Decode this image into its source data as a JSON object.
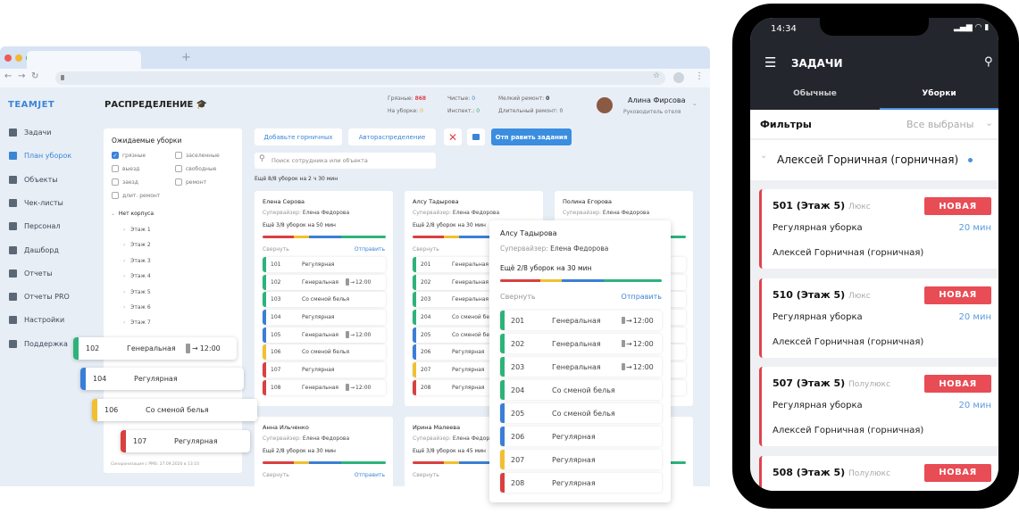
{
  "colors": {
    "green": "#2db37a",
    "blue": "#3a7fd5",
    "yellow": "#f0c030",
    "red": "#d94040",
    "accent": "#3b85d6",
    "badge": "#e84c55"
  },
  "browser": {
    "new_tab": "+"
  },
  "app": {
    "logo": "TEAMJET",
    "title": "РАСПРЕДЕЛЕНИЕ",
    "sidebar": [
      {
        "label": "Задачи",
        "icon": "list-icon"
      },
      {
        "label": "План уборок",
        "icon": "broom-icon",
        "active": true
      },
      {
        "label": "Объекты",
        "icon": "building-icon"
      },
      {
        "label": "Чек-листы",
        "icon": "checklist-icon"
      },
      {
        "label": "Персонал",
        "icon": "people-icon"
      },
      {
        "label": "Дашборд",
        "icon": "dashboard-icon"
      },
      {
        "label": "Отчеты",
        "icon": "report-icon"
      },
      {
        "label": "Отчеты PRO",
        "icon": "table-icon"
      },
      {
        "label": "Настройки",
        "icon": "gear-icon"
      },
      {
        "label": "Поддержка",
        "icon": "chat-icon"
      }
    ],
    "stats": {
      "dirty_label": "Грязные:",
      "dirty": "868",
      "cleaning_label": "На уборке:",
      "cleaning": "0",
      "clean_label": "Чистые:",
      "clean": "0",
      "inspect_label": "Инспект.:",
      "inspect": "0",
      "minor_label": "Мелкий ремонт:",
      "minor": "0",
      "long_label": "Длительный ремонт:",
      "long": "0"
    },
    "user": {
      "name": "Алина Фирсова",
      "role": "Руководитель отеля"
    },
    "filter": {
      "title": "Ожидаемые уборки",
      "checks": [
        {
          "label": "грязные",
          "on": true
        },
        {
          "label": "заселенные"
        },
        {
          "label": "выезд"
        },
        {
          "label": "свободные"
        },
        {
          "label": "заезд"
        },
        {
          "label": "ремонт"
        },
        {
          "label": "длит. ремонт"
        }
      ],
      "group": "Нет корпуса",
      "floors": [
        "Этаж 1",
        "Этаж 2",
        "Этаж 3",
        "Этаж 4",
        "Этаж 5",
        "Этаж 6",
        "Этаж 7"
      ],
      "sync": "Синхронизация с PMS: 27.09.2020 в 13:10"
    },
    "toolbar": {
      "add": "Добавьте горничных",
      "auto": "Автораспределение",
      "send": "Отп равить задания",
      "search_placeholder": "Поиск сотрудника или объекта"
    },
    "summary": "Ещё 8/8 уборок на 2 ч 30 мин",
    "cards": [
      {
        "name": "Елена Серова",
        "sup_label": "Супервайзер:",
        "sup": "Елена Федорова",
        "remaining": "Ещё 3/8 уборок на 50 мин",
        "collapse": "Свернуть",
        "send": "Отправить",
        "rows": [
          {
            "n": "101",
            "t": "Регулярная",
            "c": "green"
          },
          {
            "n": "102",
            "t": "Генеральная",
            "tm": "12:00",
            "c": "green"
          },
          {
            "n": "103",
            "t": "Со сменой белья",
            "c": "green"
          },
          {
            "n": "104",
            "t": "Регулярная",
            "c": "blue"
          },
          {
            "n": "105",
            "t": "Генеральная",
            "tm": "12:00",
            "c": "blue"
          },
          {
            "n": "106",
            "t": "Со сменой белья",
            "c": "yellow"
          },
          {
            "n": "107",
            "t": "Регулярная",
            "c": "red"
          },
          {
            "n": "108",
            "t": "Генеральная",
            "tm": "12:00",
            "c": "red"
          }
        ]
      },
      {
        "name": "Алсу Тадырова",
        "sup_label": "Супервайзер:",
        "sup": "Елена Федорова",
        "remaining": "Ещё 2/8 уборок на 30 мин",
        "collapse": "Свернуть",
        "send": "Отправить",
        "rows": [
          {
            "n": "201",
            "t": "Генеральная",
            "c": "green"
          },
          {
            "n": "202",
            "t": "Генеральная",
            "c": "green"
          },
          {
            "n": "203",
            "t": "Генеральная",
            "c": "green"
          },
          {
            "n": "204",
            "t": "Со сменой белья",
            "c": "green"
          },
          {
            "n": "205",
            "t": "Со сменой белья",
            "c": "blue"
          },
          {
            "n": "206",
            "t": "Регулярная",
            "c": "blue"
          },
          {
            "n": "207",
            "t": "Регулярная",
            "c": "yellow"
          },
          {
            "n": "208",
            "t": "Регулярная",
            "c": "red"
          }
        ]
      },
      {
        "name": "Полина Егорова",
        "sup_label": "Супервайзер:",
        "sup": "Елена Федорова",
        "rows": [
          {},
          {},
          {},
          {},
          {},
          {},
          {},
          {}
        ]
      },
      {
        "name": "Анна Ильченко",
        "sup_label": "Супервайзер:",
        "sup": "Елена Федорова",
        "remaining": "Ещё 2/8 уборок на 30 мин",
        "collapse": "Свернуть",
        "send": "Отправить",
        "rows": []
      },
      {
        "name": "Ирина Малеева",
        "sup_label": "Супервайзер:",
        "sup": "Елена Федорова",
        "remaining": "Ещё 3/8 уборок на 45 мин",
        "collapse": "Свернуть",
        "rows": []
      },
      {
        "rows": []
      }
    ],
    "popup": {
      "name": "Алсу Тадырова",
      "sup_label": "Супервайзер:",
      "sup": "Елена Федорова",
      "remaining": "Ещё 2/8 уборок на 30 мин",
      "collapse": "Свернуть",
      "send": "Отправить",
      "rows": [
        {
          "n": "201",
          "t": "Генеральная",
          "tm": "12:00",
          "c": "green"
        },
        {
          "n": "202",
          "t": "Генеральная",
          "tm": "12:00",
          "c": "green"
        },
        {
          "n": "203",
          "t": "Генеральная",
          "tm": "12:00",
          "c": "green"
        },
        {
          "n": "204",
          "t": "Со сменой белья",
          "c": "green"
        },
        {
          "n": "205",
          "t": "Со сменой белья",
          "c": "blue"
        },
        {
          "n": "206",
          "t": "Регулярная",
          "c": "blue"
        },
        {
          "n": "207",
          "t": "Регулярная",
          "c": "yellow"
        },
        {
          "n": "208",
          "t": "Регулярная",
          "c": "red"
        }
      ]
    },
    "dragged": [
      {
        "n": "102",
        "t": "Генеральная",
        "tm": "12:00",
        "c": "green"
      },
      {
        "n": "104",
        "t": "Регулярная",
        "c": "blue"
      },
      {
        "n": "106",
        "t": "Со сменой белья",
        "c": "yellow"
      },
      {
        "n": "107",
        "t": "Регулярная",
        "c": "red"
      }
    ]
  },
  "mobile": {
    "time": "14:34",
    "title": "ЗАДАЧИ",
    "tabs": [
      {
        "label": "Обычные"
      },
      {
        "label": "Уборки",
        "active": true
      }
    ],
    "filters_label": "Фильтры",
    "filters_value": "Все выбраны",
    "group": "Алексей Горничная (горничная)",
    "tasks": [
      {
        "room": "501 (Этаж 5)",
        "cat": "Люкс",
        "status": "НОВАЯ",
        "type": "Регулярная уборка",
        "dur": "20 мин",
        "assignee": "Алексей Горничная (горничная)"
      },
      {
        "room": "510 (Этаж 5)",
        "cat": "Люкс",
        "status": "НОВАЯ",
        "type": "Регулярная уборка",
        "dur": "20 мин",
        "assignee": "Алексей Горничная (горничная)"
      },
      {
        "room": "507 (Этаж 5)",
        "cat": "Полулюкс",
        "status": "НОВАЯ",
        "type": "Регулярная уборка",
        "dur": "20 мин",
        "assignee": "Алексей Горничная (горничная)"
      },
      {
        "room": "508 (Этаж 5)",
        "cat": "Полулюкс",
        "status": "НОВАЯ"
      }
    ]
  }
}
